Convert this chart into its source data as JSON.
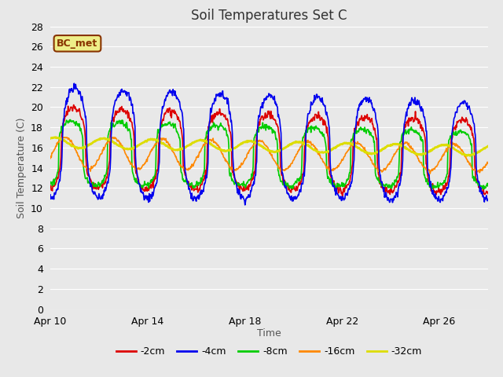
{
  "title": "Soil Temperatures Set C",
  "xlabel": "Time",
  "ylabel": "Soil Temperature (C)",
  "ylim": [
    0,
    28
  ],
  "yticks": [
    0,
    2,
    4,
    6,
    8,
    10,
    12,
    14,
    16,
    18,
    20,
    22,
    24,
    26,
    28
  ],
  "x_tick_positions": [
    0,
    4,
    8,
    12,
    16
  ],
  "x_tick_labels": [
    "Apr 10",
    "Apr 14",
    "Apr 18",
    "Apr 22",
    "Apr 26"
  ],
  "xlim": [
    0,
    18
  ],
  "series_labels": [
    "-2cm",
    "-4cm",
    "-8cm",
    "-16cm",
    "-32cm"
  ],
  "series_colors": [
    "#dd0000",
    "#0000ee",
    "#00cc00",
    "#ff8800",
    "#dddd00"
  ],
  "line_widths": [
    1.2,
    1.2,
    1.2,
    1.2,
    2.0
  ],
  "annotation_text": "BC_met",
  "annotation_bg": "#eeee88",
  "annotation_border": "#883300",
  "fig_bg_color": "#e8e8e8",
  "plot_bg_color": "#e8e8e8",
  "grid_color": "#ffffff",
  "title_fontsize": 12,
  "label_fontsize": 9,
  "tick_fontsize": 9,
  "n_days": 18,
  "n_points": 864
}
